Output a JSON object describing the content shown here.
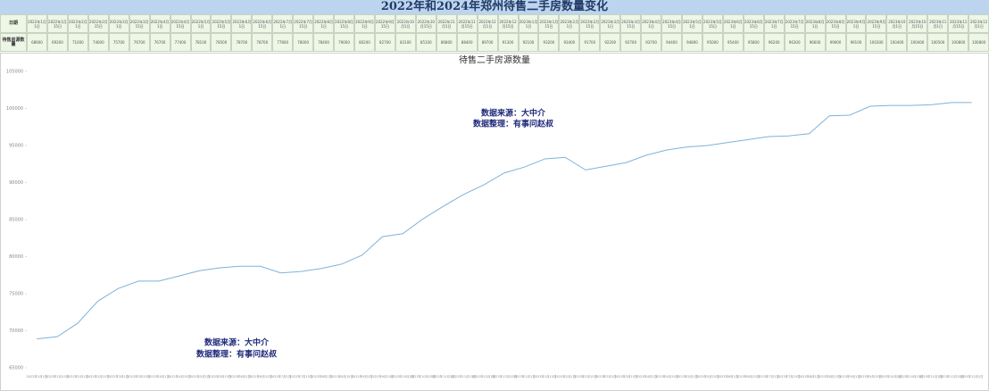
{
  "header": {
    "title": "2022年和2024年郑州待售二手房数量变化"
  },
  "table": {
    "row_labels": [
      "日期",
      "待售房源数量"
    ]
  },
  "chart_data": {
    "type": "line",
    "title": "待售二手房源数量",
    "annotations": [
      "数据来源：大中介",
      "数据整理：有事问赵叔"
    ],
    "categories": [
      "2022年1月1日",
      "2022年1月15日",
      "2022年2月1日",
      "2022年2月15日",
      "2022年3月1日",
      "2022年3月15日",
      "2022年4月1日",
      "2022年4月15日",
      "2022年5月1日",
      "2022年5月15日",
      "2022年6月1日",
      "2022年6月15日",
      "2022年7月1日",
      "2022年7月15日",
      "2022年8月1日",
      "2022年8月15日",
      "2022年9月1日",
      "2022年9月15日",
      "2022年10月1日",
      "2022年10月15日",
      "2022年11月1日",
      "2022年11月15日",
      "2022年12月1日",
      "2022年12月15日",
      "2023年1月1日",
      "2023年1月15日",
      "2023年2月1日",
      "2023年2月15日",
      "2023年3月1日",
      "2023年3月15日",
      "2023年4月1日",
      "2023年4月15日",
      "2023年5月1日",
      "2023年5月15日",
      "2023年6月1日",
      "2023年6月15日",
      "2023年7月1日",
      "2023年7月15日",
      "2023年8月1日",
      "2023年8月15日",
      "2023年9月1日",
      "2023年9月15日",
      "2023年10月1日",
      "2023年10月15日",
      "2023年11月1日",
      "2023年11月15日",
      "2023年12月1日"
    ],
    "series": [
      {
        "name": "待售房源数量",
        "color": "#7fb2d9",
        "values": [
          68900,
          69200,
          71000,
          74000,
          75700,
          76700,
          76700,
          77400,
          78100,
          78500,
          78700,
          78700,
          77800,
          78000,
          78400,
          79000,
          80200,
          82700,
          83100,
          85100,
          86800,
          88400,
          89700,
          91300,
          92100,
          93200,
          93400,
          91700,
          92200,
          92700,
          93700,
          94400,
          94800,
          95000,
          95400,
          95800,
          96200,
          96300,
          96600,
          99000,
          99100,
          100300,
          100400,
          100400,
          100500,
          100800,
          100800
        ]
      }
    ],
    "ylim": [
      65000,
      105000
    ],
    "yticks": [
      65000,
      70000,
      75000,
      80000,
      85000,
      90000,
      95000,
      100000,
      105000
    ]
  }
}
